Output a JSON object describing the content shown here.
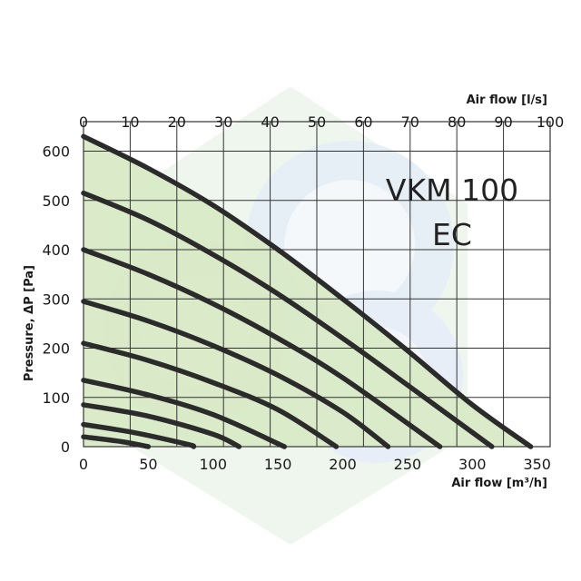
{
  "chart_data": {
    "type": "line",
    "title": "VKM 100 EC",
    "title_lines": [
      "VKM 100",
      "EC"
    ],
    "xlabel": "Air flow [m³/h]",
    "x2label": "Air flow [l/s]",
    "ylabel": "Pressure, ΔP [Pa]",
    "xlim": [
      0,
      360
    ],
    "x2lim": [
      0,
      100
    ],
    "ylim": [
      0,
      660
    ],
    "xticks": [
      0,
      50,
      100,
      150,
      200,
      250,
      300,
      350
    ],
    "x2ticks": [
      0,
      10,
      20,
      30,
      40,
      50,
      60,
      70,
      80,
      90,
      100
    ],
    "yticks": [
      0,
      100,
      200,
      300,
      400,
      500,
      600
    ],
    "grid": true,
    "colors": {
      "curve": "#2b2b2b",
      "fill": "#d8e9c6",
      "grid": "#333333",
      "frame": "#333333"
    },
    "series": [
      {
        "x": [
          0,
          50,
          100,
          150,
          200,
          250,
          300,
          345
        ],
        "values": [
          630,
          565,
          490,
          400,
          300,
          195,
          85,
          0
        ]
      },
      {
        "x": [
          0,
          50,
          100,
          150,
          200,
          250,
          315
        ],
        "values": [
          515,
          460,
          390,
          310,
          220,
          125,
          0
        ]
      },
      {
        "x": [
          0,
          50,
          100,
          150,
          200,
          275
        ],
        "values": [
          400,
          350,
          290,
          220,
          140,
          0
        ]
      },
      {
        "x": [
          0,
          50,
          100,
          150,
          200,
          235
        ],
        "values": [
          295,
          255,
          205,
          145,
          70,
          0
        ]
      },
      {
        "x": [
          0,
          50,
          100,
          150,
          195
        ],
        "values": [
          210,
          175,
          130,
          75,
          0
        ]
      },
      {
        "x": [
          0,
          50,
          100,
          155
        ],
        "values": [
          135,
          105,
          65,
          0
        ]
      },
      {
        "x": [
          0,
          50,
          100,
          120
        ],
        "values": [
          85,
          62,
          25,
          0
        ]
      },
      {
        "x": [
          0,
          40,
          80,
          85
        ],
        "values": [
          45,
          28,
          5,
          0
        ]
      },
      {
        "x": [
          0,
          30,
          50
        ],
        "values": [
          20,
          10,
          0
        ]
      }
    ]
  }
}
